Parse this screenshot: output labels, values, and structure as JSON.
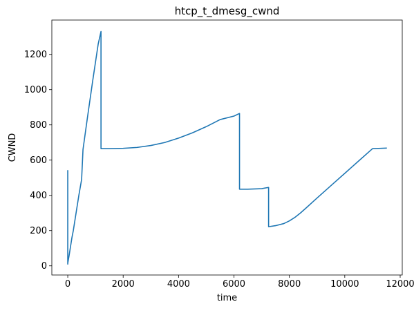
{
  "chart_data": {
    "type": "line",
    "title": "htcp_t_dmesg_cwnd",
    "xlabel": "time",
    "ylabel": "CWND",
    "xlim": [
      -575,
      12075
    ],
    "ylim": [
      -52,
      1395
    ],
    "xticks": [
      0,
      2000,
      4000,
      6000,
      8000,
      10000,
      12000
    ],
    "xtick_labels": [
      "0",
      "2000",
      "4000",
      "6000",
      "8000",
      "10000",
      "12000"
    ],
    "yticks": [
      0,
      200,
      400,
      600,
      800,
      1000,
      1200
    ],
    "ytick_labels": [
      "0",
      "200",
      "400",
      "600",
      "800",
      "1000",
      "1200"
    ],
    "grid": false,
    "legend": false,
    "series": [
      {
        "color": "#1f77b4",
        "x": [
          0,
          0,
          0,
          50,
          100,
          150,
          200,
          300,
          400,
          500,
          550,
          700,
          900,
          1100,
          1200,
          1200,
          1500,
          2000,
          2500,
          3000,
          3500,
          4000,
          4500,
          5000,
          5500,
          6000,
          6200,
          6200,
          6500,
          7000,
          7250,
          7250,
          7500,
          7800,
          8000,
          8200,
          8400,
          8600,
          9000,
          9500,
          10000,
          10500,
          11000,
          11500
        ],
        "y": [
          540,
          10,
          15,
          60,
          110,
          160,
          200,
          300,
          400,
          490,
          660,
          830,
          1050,
          1260,
          1330,
          665,
          665,
          667,
          672,
          683,
          700,
          725,
          755,
          790,
          830,
          850,
          865,
          435,
          435,
          438,
          445,
          222,
          228,
          240,
          255,
          275,
          300,
          328,
          385,
          455,
          525,
          595,
          665,
          668
        ]
      }
    ]
  }
}
